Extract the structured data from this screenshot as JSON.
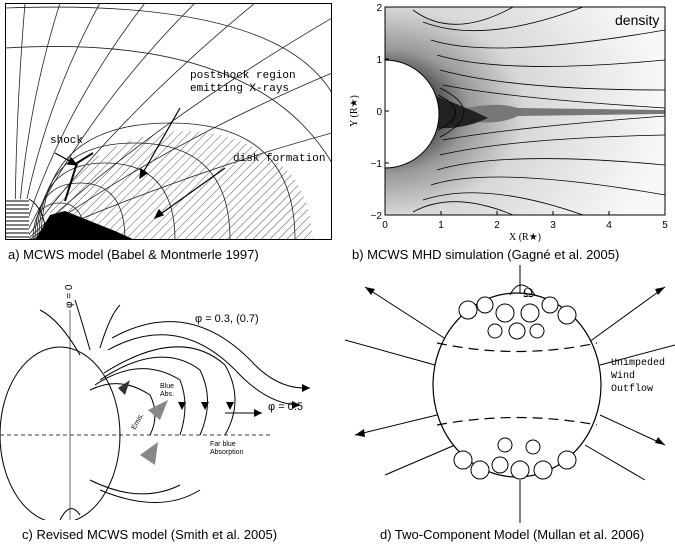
{
  "panel_a": {
    "labels": {
      "postshock_line1": "postshock region",
      "postshock_line2": "emitting X-rays",
      "shock": "shock",
      "disk": "disk formation"
    },
    "caption": "a) MCWS model (Babel & Montmerle 1997)"
  },
  "panel_b": {
    "density_label": "density",
    "y_axis_label": "Y (R★)",
    "x_axis_label": "X (R★)",
    "y_ticks": [
      "2",
      "1",
      "0",
      "−1",
      "−2"
    ],
    "x_ticks": [
      "0",
      "1",
      "2",
      "3",
      "4",
      "5"
    ],
    "caption": "b) MCWS MHD simulation (Gagné et al. 2005)"
  },
  "panel_c": {
    "labels": {
      "phi0": "φ = 0",
      "phi03": "φ = 0.3, (0.7)",
      "phi05": "φ = 0.5",
      "blue_abs1": "Blue",
      "blue_abs2": "Abs.",
      "emis": "Emis.",
      "far_blue1": "Far blue",
      "far_blue2": "Absorption"
    },
    "caption": "c) Revised MCWS model (Smith et al. 2005)"
  },
  "panel_d": {
    "labels": {
      "omega": "Ω",
      "unimpeded1": "Unimpeded",
      "unimpeded2": "Wind",
      "unimpeded3": "Outflow"
    },
    "caption": "d) Two-Component Model (Mullan et al. 2006)"
  }
}
